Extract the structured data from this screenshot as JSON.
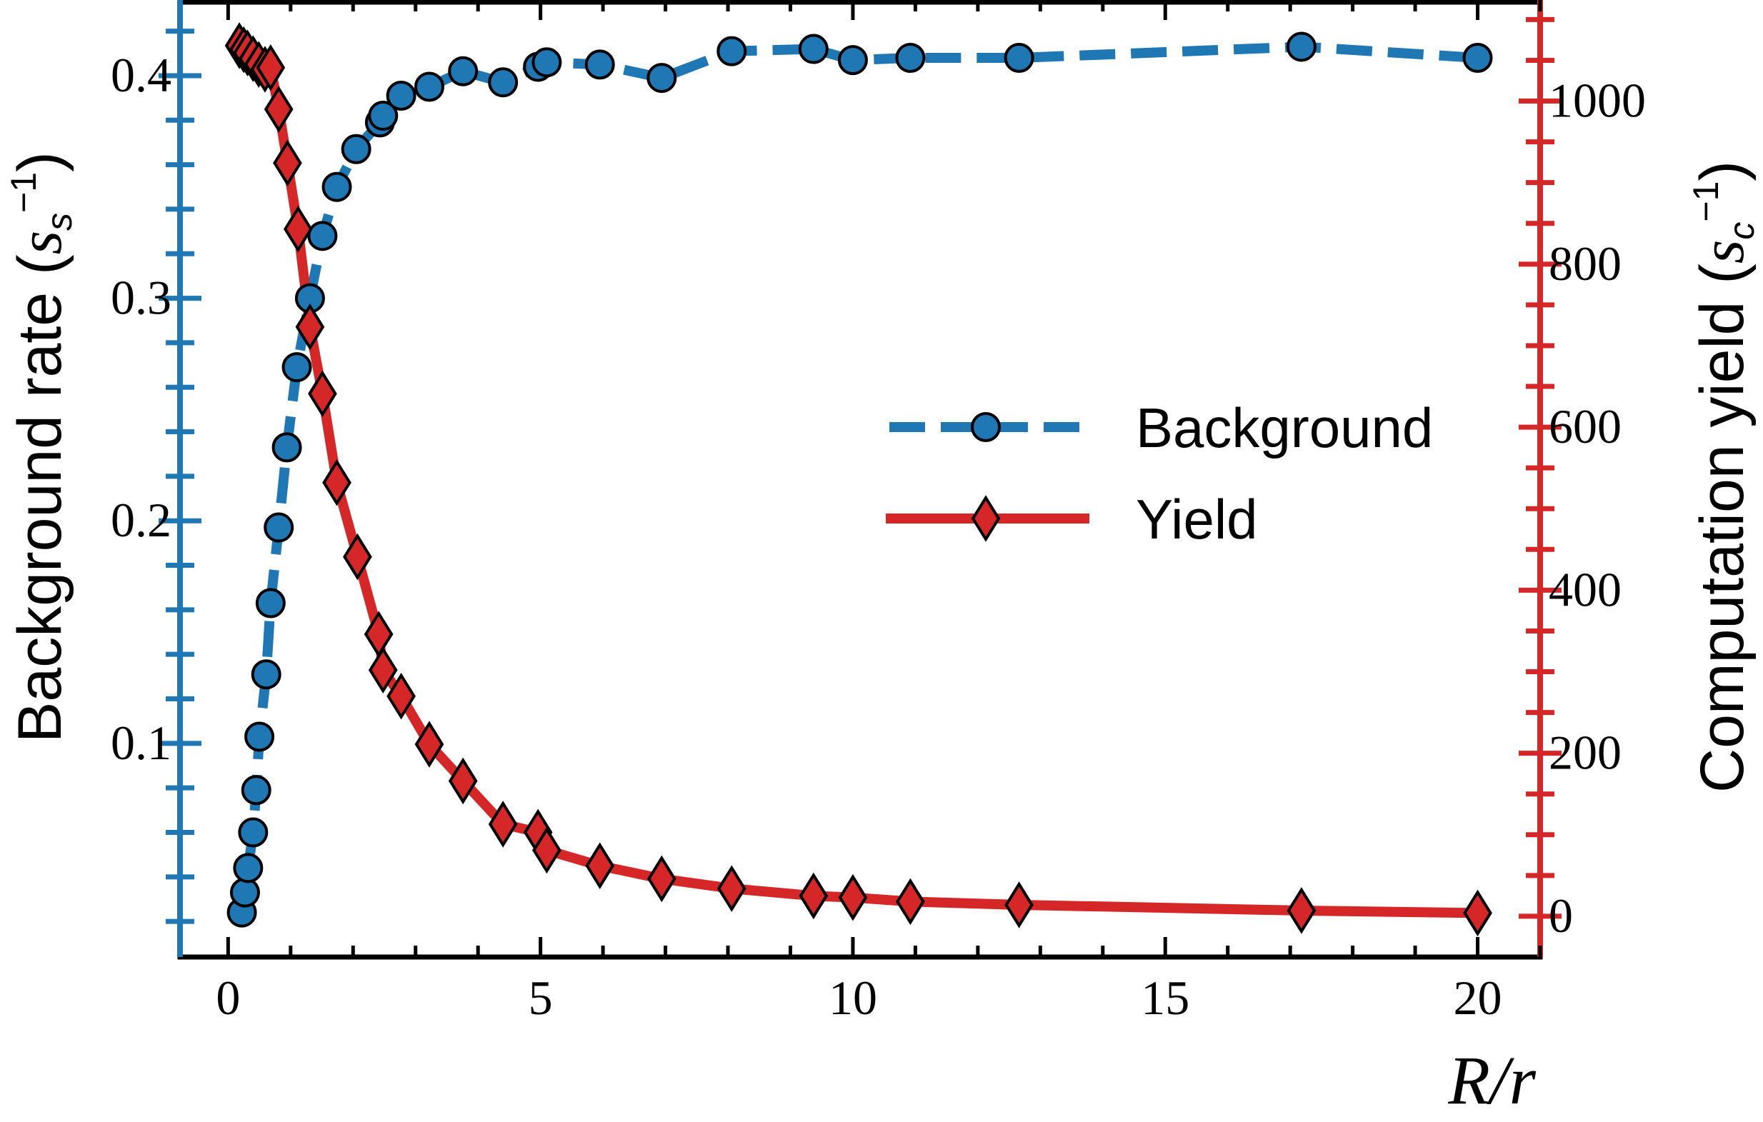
{
  "chart_data": {
    "type": "line",
    "title": "",
    "xlabel": "R/r",
    "ylabel_left": "Background rate (s_s^-1)",
    "ylabel_right": "Computation yield (s_c^-1)",
    "xlim": [
      -0.77,
      21
    ],
    "ylim_left": [
      0.004,
      0.434
    ],
    "ylim_right": [
      -50,
      1124
    ],
    "x_ticks": [
      0,
      5,
      10,
      15,
      20
    ],
    "y_left_ticks": [
      0.1,
      0.2,
      0.3,
      0.4
    ],
    "y_right_ticks": [
      0,
      200,
      400,
      600,
      800,
      1000
    ],
    "grid": false,
    "legend_position": "center-right",
    "colors": {
      "background": "#1f77b4",
      "yield": "#d62728"
    },
    "series": [
      {
        "name": "Background",
        "axis": "left",
        "style": "dashed-circle",
        "x": [
          0.22,
          0.27,
          0.32,
          0.4,
          0.45,
          0.5,
          0.61,
          0.68,
          0.81,
          0.94,
          1.1,
          1.31,
          1.51,
          1.74,
          2.05,
          2.43,
          2.48,
          2.77,
          3.22,
          3.76,
          4.4,
          4.96,
          5.1,
          5.95,
          6.94,
          8.06,
          9.37,
          10.0,
          10.92,
          12.66,
          17.18,
          20.0
        ],
        "y": [
          0.024,
          0.033,
          0.044,
          0.06,
          0.079,
          0.103,
          0.131,
          0.163,
          0.197,
          0.233,
          0.269,
          0.3,
          0.328,
          0.35,
          0.367,
          0.379,
          0.382,
          0.391,
          0.395,
          0.402,
          0.397,
          0.404,
          0.406,
          0.405,
          0.399,
          0.411,
          0.412,
          0.407,
          0.408,
          0.408,
          0.413,
          0.408
        ]
      },
      {
        "name": "Yield",
        "axis": "right",
        "style": "solid-diamond",
        "x": [
          0.18,
          0.25,
          0.31,
          0.4,
          0.49,
          0.59,
          0.68,
          0.81,
          0.95,
          1.12,
          1.31,
          1.51,
          1.74,
          2.07,
          2.41,
          2.48,
          2.77,
          3.22,
          3.76,
          4.4,
          4.96,
          5.1,
          5.95,
          6.94,
          8.06,
          9.37,
          10.0,
          10.92,
          12.66,
          17.18,
          20.0
        ],
        "y": [
          1068,
          1063,
          1059,
          1052,
          1045,
          1039,
          1041,
          990,
          924,
          843,
          723,
          641,
          532,
          441,
          346,
          302,
          270,
          211,
          166,
          113,
          103,
          81,
          62,
          46,
          34,
          25,
          23,
          18,
          14,
          7,
          4
        ]
      }
    ]
  },
  "labels": {
    "xlabel": "R/r",
    "ylabel_left": "Background rate (",
    "ylabel_left_unit": "s",
    "ylabel_left_sub": "s",
    "ylabel_right": "Computation yield (",
    "ylabel_right_unit": "s",
    "ylabel_right_sub": "c",
    "sup": "−1",
    "close": ")",
    "legend_background": "Background",
    "legend_yield": "Yield"
  }
}
